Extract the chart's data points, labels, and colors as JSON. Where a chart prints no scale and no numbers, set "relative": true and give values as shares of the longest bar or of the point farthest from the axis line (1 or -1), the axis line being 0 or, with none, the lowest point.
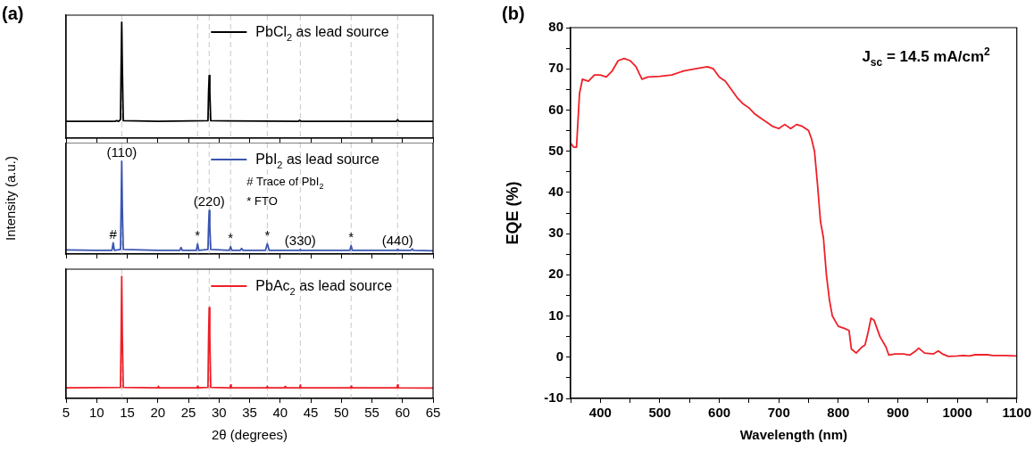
{
  "chart_data": [
    {
      "type": "line",
      "title": "(a)",
      "relative": true,
      "xlim": [
        5,
        65
      ],
      "xticks": [
        5,
        10,
        15,
        20,
        25,
        30,
        35,
        40,
        45,
        50,
        55,
        60,
        65
      ],
      "tick_labels": false,
      "legend": "top right",
      "grid": false,
      "marker": "none",
      "series": [
        {
          "name": "PbCl$_{2}$ as lead source",
          "color": "#000000",
          "x": [
            5,
            13.0,
            13.3,
            13.6,
            13.9,
            14.0,
            14.1,
            14.2,
            14.35,
            20,
            28.2,
            28.3,
            28.4,
            28.5,
            28.65,
            43.0,
            43.2,
            43.4,
            59.0,
            59.2,
            59.4,
            65
          ],
          "values": [
            0.145,
            0.145,
            0.15,
            0.145,
            0.16,
            0.6,
            1,
            0.6,
            0.15,
            0.145,
            0.15,
            0.4,
            0.54,
            0.4,
            0.15,
            0.145,
            0.155,
            0.145,
            0.145,
            0.16,
            0.145,
            0.145
          ]
        }
      ],
      "ref_lines": [
        {
          "axis": "x",
          "value": 14.1,
          "color": "#c8c8c8",
          "line_style": "dashed"
        },
        {
          "axis": "x",
          "value": 26.5,
          "color": "#c8c8c8",
          "line_style": "dashed"
        },
        {
          "axis": "x",
          "value": 28.4,
          "color": "#c8c8c8",
          "line_style": "dashed"
        },
        {
          "axis": "x",
          "value": 31.9,
          "color": "#c8c8c8",
          "line_style": "dashed"
        },
        {
          "axis": "x",
          "value": 37.9,
          "color": "#c8c8c8",
          "line_style": "dashed"
        },
        {
          "axis": "x",
          "value": 43.3,
          "color": "#c8c8c8",
          "line_style": "dashed"
        },
        {
          "axis": "x",
          "value": 51.6,
          "color": "#c8c8c8",
          "line_style": "dashed"
        },
        {
          "axis": "x",
          "value": 59.2,
          "color": "#c8c8c8",
          "line_style": "dashed"
        }
      ]
    },
    {
      "type": "line",
      "ylabel": "Intensity (a.u.)",
      "relative": true,
      "xlim": [
        5,
        65
      ],
      "xticks": [
        5,
        10,
        15,
        20,
        25,
        30,
        35,
        40,
        45,
        50,
        55,
        60,
        65
      ],
      "tick_labels": false,
      "legend": "top right",
      "grid": false,
      "marker": "none",
      "series": [
        {
          "name": "PbI$_{2}$ as lead source",
          "color": "#3a55b0",
          "x": [
            5,
            10,
            12.5,
            12.7,
            12.9,
            13.9,
            14.0,
            14.1,
            14.2,
            14.35,
            20,
            23.6,
            23.8,
            24,
            26.3,
            26.5,
            26.7,
            28.2,
            28.3,
            28.4,
            28.5,
            28.65,
            31.7,
            31.9,
            32.1,
            33.5,
            33.7,
            33.9,
            37.6,
            37.9,
            38.2,
            43.2,
            43.3,
            43.4,
            51.4,
            51.6,
            51.8,
            59.1,
            59.2,
            59.3,
            61.4,
            61.6,
            61.8,
            65
          ],
          "values": [
            0.045,
            0.04,
            0.04,
            0.12,
            0.04,
            0.05,
            0.5,
            1,
            0.5,
            0.05,
            0.04,
            0.04,
            0.07,
            0.04,
            0.04,
            0.11,
            0.04,
            0.05,
            0.3,
            0.47,
            0.3,
            0.05,
            0.04,
            0.08,
            0.04,
            0.04,
            0.06,
            0.04,
            0.04,
            0.11,
            0.04,
            0.04,
            0.05,
            0.04,
            0.04,
            0.09,
            0.04,
            0.04,
            0.05,
            0.04,
            0.04,
            0.055,
            0.04,
            0.035
          ]
        }
      ],
      "annotations": [
        "# Trace of PbI$_{2}$",
        "* FTO",
        {
          "text": "(110)",
          "x": 14.1,
          "y": 1
        },
        {
          "text": "#",
          "x": 12.7,
          "y": 0.12
        },
        {
          "text": "*",
          "x": 26.5,
          "y": 0.11
        },
        {
          "text": "(220)",
          "x": 28.4,
          "y": 0.47
        },
        {
          "text": "*",
          "x": 31.9,
          "y": 0.08
        },
        {
          "text": "*",
          "x": 37.9,
          "y": 0.11
        },
        {
          "text": "(330)",
          "x": 43.3,
          "y": 0.05
        },
        {
          "text": "*",
          "x": 51.6,
          "y": 0.09
        },
        {
          "text": "(440)",
          "x": 59.2,
          "y": 0.05
        }
      ],
      "ref_lines": [
        {
          "axis": "x",
          "value": 14.1,
          "color": "#c8c8c8",
          "line_style": "dashed"
        },
        {
          "axis": "x",
          "value": 26.5,
          "color": "#c8c8c8",
          "line_style": "dashed"
        },
        {
          "axis": "x",
          "value": 28.4,
          "color": "#c8c8c8",
          "line_style": "dashed"
        },
        {
          "axis": "x",
          "value": 31.9,
          "color": "#c8c8c8",
          "line_style": "dashed"
        },
        {
          "axis": "x",
          "value": 37.9,
          "color": "#c8c8c8",
          "line_style": "dashed"
        },
        {
          "axis": "x",
          "value": 43.3,
          "color": "#c8c8c8",
          "line_style": "dashed"
        },
        {
          "axis": "x",
          "value": 51.6,
          "color": "#c8c8c8",
          "line_style": "dashed"
        },
        {
          "axis": "x",
          "value": 59.2,
          "color": "#c8c8c8",
          "line_style": "dashed"
        }
      ]
    },
    {
      "type": "line",
      "xlabel": "2θ (degrees)",
      "relative": true,
      "xlim": [
        5,
        65
      ],
      "xticks": [
        5,
        10,
        15,
        20,
        25,
        30,
        35,
        40,
        45,
        50,
        55,
        60,
        65
      ],
      "tick_labels": "x",
      "legend": "top right",
      "grid": false,
      "marker": "none",
      "series": [
        {
          "name": "PbAc$_{2}$ as lead source",
          "color": "#ee2028",
          "x": [
            5,
            13.9,
            14.0,
            14.1,
            14.2,
            14.35,
            20,
            20.1,
            20.2,
            26.4,
            26.5,
            26.6,
            28.2,
            28.3,
            28.4,
            28.5,
            28.65,
            31.8,
            31.9,
            32.0,
            37.8,
            37.9,
            38.0,
            40.7,
            40.8,
            40.9,
            43.2,
            43.3,
            43.4,
            51.5,
            51.6,
            51.7,
            59.1,
            59.2,
            59.3,
            65
          ],
          "values": [
            0.087,
            0.09,
            0.5,
            1,
            0.5,
            0.09,
            0.087,
            0.1,
            0.087,
            0.087,
            0.1,
            0.087,
            0.09,
            0.5,
            0.745,
            0.5,
            0.09,
            0.087,
            0.11,
            0.087,
            0.087,
            0.1,
            0.087,
            0.087,
            0.097,
            0.087,
            0.087,
            0.11,
            0.087,
            0.087,
            0.1,
            0.087,
            0.087,
            0.11,
            0.087,
            0.085
          ]
        }
      ],
      "ref_lines": [
        {
          "axis": "x",
          "value": 14.1,
          "color": "#c8c8c8",
          "line_style": "dashed"
        },
        {
          "axis": "x",
          "value": 26.5,
          "color": "#c8c8c8",
          "line_style": "dashed"
        },
        {
          "axis": "x",
          "value": 28.4,
          "color": "#c8c8c8",
          "line_style": "dashed"
        },
        {
          "axis": "x",
          "value": 31.9,
          "color": "#c8c8c8",
          "line_style": "dashed"
        },
        {
          "axis": "x",
          "value": 37.9,
          "color": "#c8c8c8",
          "line_style": "dashed"
        },
        {
          "axis": "x",
          "value": 43.3,
          "color": "#c8c8c8",
          "line_style": "dashed"
        },
        {
          "axis": "x",
          "value": 51.6,
          "color": "#c8c8c8",
          "line_style": "dashed"
        },
        {
          "axis": "x",
          "value": 59.2,
          "color": "#c8c8c8",
          "line_style": "dashed"
        }
      ]
    },
    {
      "type": "line",
      "title": "(b)",
      "xlabel": "Wavelength (nm)",
      "ylabel": "EQE (%)",
      "grid": false,
      "marker": "none",
      "legend": false,
      "xlim": [
        350,
        1100
      ],
      "xticks": [
        {
          "value": 350,
          "label": null
        },
        400,
        {
          "value": 450,
          "label": null
        },
        500,
        {
          "value": 550,
          "label": null
        },
        600,
        {
          "value": 650,
          "label": null
        },
        700,
        {
          "value": 750,
          "label": null
        },
        800,
        {
          "value": 850,
          "label": null
        },
        900,
        {
          "value": 950,
          "label": null
        },
        1000,
        {
          "value": 1050,
          "label": null
        },
        1100
      ],
      "ylim": [
        -10,
        80
      ],
      "yticks": [
        -10,
        {
          "value": -5,
          "label": null
        },
        0,
        {
          "value": 5,
          "label": null
        },
        10,
        {
          "value": 15,
          "label": null
        },
        20,
        {
          "value": 25,
          "label": null
        },
        30,
        {
          "value": 35,
          "label": null
        },
        40,
        {
          "value": 45,
          "label": null
        },
        50,
        {
          "value": 55,
          "label": null
        },
        60,
        {
          "value": 65,
          "label": null
        },
        70,
        {
          "value": 75,
          "label": null
        },
        80
      ],
      "annotations": [
        "J$_{sc}$ = 14.5 mA/cm$^{2}$"
      ],
      "series": [
        {
          "color": "#ee2028",
          "x": [
            350,
            355,
            360,
            365,
            370,
            380,
            390,
            400,
            410,
            420,
            430,
            440,
            450,
            460,
            470,
            480,
            500,
            520,
            540,
            560,
            580,
            590,
            600,
            610,
            620,
            630,
            640,
            650,
            660,
            670,
            680,
            690,
            700,
            710,
            720,
            730,
            740,
            750,
            755,
            760,
            765,
            770,
            775,
            780,
            785,
            790,
            800,
            810,
            818,
            822,
            830,
            840,
            845,
            850,
            855,
            860,
            870,
            880,
            885,
            895,
            910,
            920,
            930,
            935,
            945,
            960,
            968,
            975,
            985,
            1000,
            1010,
            1020,
            1030,
            1050,
            1060,
            1080,
            1100
          ],
          "values": [
            52,
            51,
            51,
            64,
            67.5,
            67,
            68.5,
            68.5,
            68,
            69.5,
            72,
            72.5,
            72,
            70.5,
            67.5,
            68,
            68.2,
            68.5,
            69.5,
            70,
            70.5,
            70,
            68,
            67,
            65,
            63,
            61.5,
            60.5,
            59,
            58,
            57,
            56,
            55.5,
            56.5,
            55.5,
            56.5,
            56,
            55,
            53,
            50,
            42,
            33,
            29,
            20,
            14,
            10,
            7.5,
            7,
            6.5,
            2,
            1,
            2.5,
            3,
            6,
            9.5,
            9,
            5,
            2.5,
            0.5,
            0.8,
            0.8,
            0.5,
            1.5,
            2.2,
            1,
            0.8,
            1.5,
            0.8,
            0.2,
            0.3,
            0.4,
            0.3,
            0.6,
            0.6,
            0.4,
            0.4,
            0.3
          ]
        }
      ]
    }
  ]
}
